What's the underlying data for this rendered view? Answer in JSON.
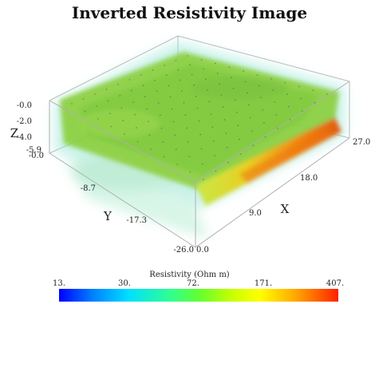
{
  "chart_data": {
    "type": "3d volume",
    "title": "Inverted Resistivity Image",
    "axes": {
      "x": {
        "label": "X",
        "ticks": [
          "0.0",
          "9.0",
          "18.0",
          "27.0"
        ]
      },
      "y": {
        "label": "Y",
        "ticks": [
          "-0.0",
          "-8.7",
          "-17.3",
          "-26.0"
        ]
      },
      "z": {
        "label": "Z",
        "ticks": [
          "-0.0",
          "-2.0",
          "-4.0",
          "-5.9"
        ]
      }
    },
    "colorbar": {
      "label": "Resistivity (Ohm m)",
      "ticks": [
        "13.",
        "30.",
        "72.",
        "171.",
        "407."
      ],
      "range": [
        13,
        407
      ],
      "scale": "log",
      "colors": [
        "#0000ff",
        "#00e0ff",
        "#60ff30",
        "#ffff00",
        "#ff2000"
      ]
    }
  }
}
